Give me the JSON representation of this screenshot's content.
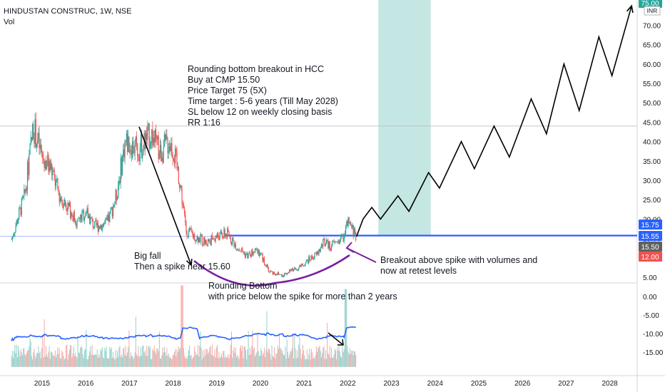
{
  "header": {
    "symbol": "HINDUSTAN CONSTRUC, 1W, NSE",
    "volume_label": "Vol"
  },
  "colors": {
    "up": "#26a69a",
    "down": "#ef5350",
    "trendline": "#2962ff",
    "volume_ma": "#2962ff",
    "arc": "#7b1fa2",
    "arrow": "#000000",
    "profit_zone": "#b2dfdb",
    "loss_zone": "#ffcdd2"
  },
  "annotations": {
    "plan": [
      "Rounding bottom breakout in HCC",
      "Buy at CMP 15.50",
      "Price Target 75 (5X)",
      "Time target : 5-6 years (Till May 2028)",
      "SL below 12 on weekly closing basis",
      "RR 1:16"
    ],
    "big_fall": [
      "Big fall",
      "Then a spike near 15.60"
    ],
    "rounding": [
      "Rounding Bottom",
      "with price below the spike for more than 2 years"
    ],
    "breakout": [
      "Breakout above spike with volumes and",
      "now at retest levels"
    ]
  },
  "chart_data": {
    "type": "candlestick",
    "title": "HINDUSTAN CONSTRUC, 1W, NSE",
    "x_axis": {
      "labels": [
        "2015",
        "2016",
        "2017",
        "2018",
        "2019",
        "2020",
        "2021",
        "2022",
        "2023",
        "2024",
        "2025",
        "2026",
        "2027",
        "2028"
      ]
    },
    "price_axis": {
      "unit": "INR",
      "ticks": [
        "5.00",
        "10.00",
        "15.00",
        "20.00",
        "25.00",
        "30.00",
        "35.00",
        "40.00",
        "45.00",
        "50.00",
        "55.00",
        "60.00",
        "65.00",
        "70.00"
      ],
      "markers": [
        {
          "label": "75.00",
          "value": 75,
          "color": "#26a69a"
        },
        {
          "label": "15.75",
          "value": 15.75,
          "color": "#2962ff"
        },
        {
          "label": "15.55",
          "value": 15.55,
          "color": "#2962ff"
        },
        {
          "label": "15.50",
          "value": 15.5,
          "color": "#616161"
        },
        {
          "label": "12.00",
          "value": 12,
          "color": "#ef5350"
        }
      ]
    },
    "volume_axis": {
      "ticks": [
        "0.00",
        "-5.00",
        "-10.00",
        "-15.00"
      ]
    },
    "price_path": [
      [
        2014.3,
        14.8
      ],
      [
        2014.6,
        26
      ],
      [
        2014.8,
        44
      ],
      [
        2015.0,
        36
      ],
      [
        2015.2,
        33
      ],
      [
        2015.4,
        26
      ],
      [
        2015.6,
        23
      ],
      [
        2015.8,
        19
      ],
      [
        2016.0,
        22
      ],
      [
        2016.2,
        18
      ],
      [
        2016.5,
        19
      ],
      [
        2016.7,
        26
      ],
      [
        2016.9,
        40
      ],
      [
        2017.2,
        38
      ],
      [
        2017.5,
        42
      ],
      [
        2017.7,
        37
      ],
      [
        2017.9,
        40
      ],
      [
        2018.0,
        38
      ],
      [
        2018.15,
        30
      ],
      [
        2018.3,
        17
      ],
      [
        2018.5,
        15.6
      ],
      [
        2018.75,
        14
      ],
      [
        2019.0,
        15.5
      ],
      [
        2019.25,
        16.2
      ],
      [
        2019.45,
        13
      ],
      [
        2019.7,
        10.5
      ],
      [
        2019.95,
        12
      ],
      [
        2020.2,
        6.5
      ],
      [
        2020.5,
        5.5
      ],
      [
        2020.75,
        7
      ],
      [
        2020.9,
        7.5
      ],
      [
        2021.1,
        9.5
      ],
      [
        2021.3,
        11
      ],
      [
        2021.45,
        14
      ],
      [
        2021.6,
        13
      ],
      [
        2021.8,
        14.5
      ],
      [
        2021.9,
        15.6
      ],
      [
        2022.0,
        19
      ],
      [
        2022.12,
        17
      ],
      [
        2022.2,
        15.5
      ]
    ],
    "projection": [
      [
        2022.2,
        15.5
      ],
      [
        2022.35,
        20
      ],
      [
        2022.55,
        23
      ],
      [
        2022.75,
        20
      ],
      [
        2023.15,
        26
      ],
      [
        2023.4,
        22
      ],
      [
        2023.85,
        32
      ],
      [
        2024.1,
        28
      ],
      [
        2024.6,
        40
      ],
      [
        2024.9,
        33
      ],
      [
        2025.35,
        44
      ],
      [
        2025.7,
        36
      ],
      [
        2026.2,
        51
      ],
      [
        2026.55,
        42
      ],
      [
        2026.95,
        60
      ],
      [
        2027.3,
        48
      ],
      [
        2027.75,
        67
      ],
      [
        2028.05,
        57
      ],
      [
        2028.5,
        75
      ]
    ],
    "levels": [
      {
        "value": 44,
        "style": "gray"
      },
      {
        "value": 15.75,
        "style": "blue"
      },
      {
        "value": 15.55,
        "style": "blue-thin"
      }
    ],
    "profit_zone": {
      "x_from": 2022.7,
      "x_to": 2023.9,
      "y_from": 15.75,
      "y_to": 75
    },
    "loss_zone": {
      "x_from": 2022.7,
      "x_to": 2023.9,
      "y_from": 12,
      "y_to": 15.75
    }
  }
}
